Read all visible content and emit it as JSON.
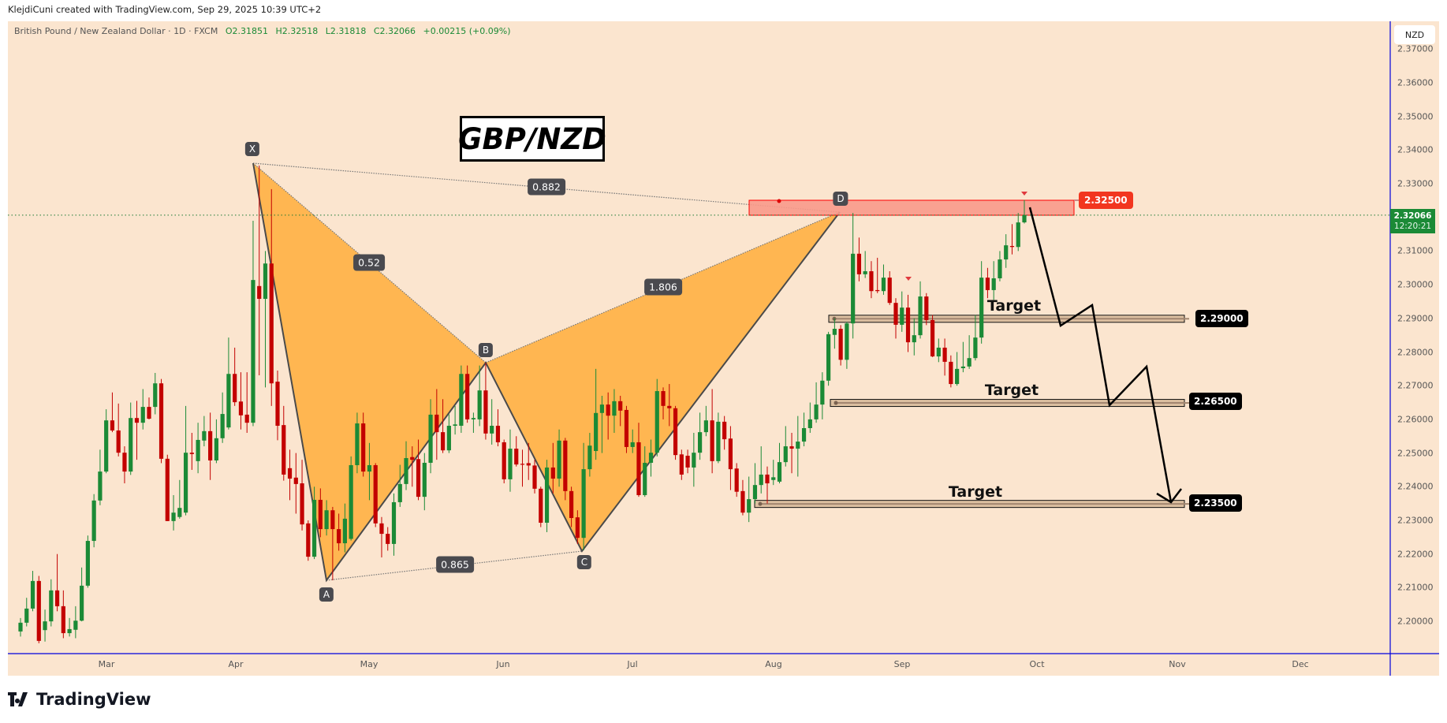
{
  "credit": "KlejdiCuni created with TradingView.com, Sep 29, 2025 10:39 UTC+2",
  "legend": {
    "symbol": "British Pound / New Zealand Dollar · 1D · FXCM",
    "open": "O2.31851",
    "high": "H2.32518",
    "low": "L2.31818",
    "close": "C2.32066",
    "change": "+0.00215 (+0.09%)"
  },
  "currency_button": "NZD",
  "current_price": {
    "value": "2.32066",
    "countdown": "12:20:21"
  },
  "price_axis": [
    "2.37000",
    "2.36000",
    "2.35000",
    "2.34000",
    "2.33000",
    "2.31000",
    "2.30000",
    "2.29000",
    "2.28000",
    "2.27000",
    "2.26000",
    "2.25000",
    "2.24000",
    "2.23000",
    "2.22000",
    "2.21000",
    "2.20000"
  ],
  "time_axis": [
    "Mar",
    "Apr",
    "May",
    "Jun",
    "Jul",
    "Aug",
    "Sep",
    "Oct",
    "Nov",
    "Dec"
  ],
  "title_label": "GBP/NZD",
  "pattern": {
    "points": [
      "X",
      "A",
      "B",
      "C",
      "D"
    ],
    "ratios": {
      "xb": "0.52",
      "xd": "0.882",
      "bd": "1.806",
      "ac": "0.865"
    }
  },
  "zones": {
    "sell_zone": "2.32500",
    "targets": [
      {
        "label": "Target",
        "price": "2.29000"
      },
      {
        "label": "Target",
        "price": "2.26500"
      },
      {
        "label": "Target",
        "price": "2.23500"
      }
    ]
  },
  "logo": "TradingView",
  "colors": {
    "up": "#1b8a36",
    "down": "#c30000",
    "pattern": "#ffb651",
    "background": "#fbe5cf",
    "zone": "#f8998a"
  },
  "chart_data": {
    "type": "candlestick",
    "title": "British Pound / New Zealand Dollar · 1D · FXCM",
    "ylim": [
      2.192,
      2.372
    ],
    "candles_ohlc": [
      [
        2.197,
        2.201,
        2.1955,
        2.1996
      ],
      [
        2.1996,
        2.207,
        2.1985,
        2.2038
      ],
      [
        2.2038,
        2.215,
        2.203,
        2.212
      ],
      [
        2.212,
        2.2135,
        2.1935,
        2.1942
      ],
      [
        2.1974,
        2.2035,
        2.194,
        2.2
      ],
      [
        2.2,
        2.2125,
        2.1985,
        2.2092
      ],
      [
        2.2092,
        2.22,
        2.203,
        2.2045
      ],
      [
        2.2045,
        2.2092,
        2.195,
        2.1965
      ],
      [
        2.1965,
        2.201,
        2.1955,
        2.1977
      ],
      [
        2.1975,
        2.2045,
        2.195,
        2.2002
      ],
      [
        2.2002,
        2.216,
        2.2,
        2.2106
      ],
      [
        2.2106,
        2.2255,
        2.21,
        2.2239
      ],
      [
        2.2239,
        2.2378,
        2.222,
        2.2359
      ],
      [
        2.2359,
        2.251,
        2.2345,
        2.2445
      ],
      [
        2.2445,
        2.263,
        2.244,
        2.2597
      ],
      [
        2.2597,
        2.268,
        2.2562,
        2.2567
      ],
      [
        2.2567,
        2.2647,
        2.249,
        2.2501
      ],
      [
        2.2501,
        2.252,
        2.241,
        2.2445
      ],
      [
        2.2445,
        2.265,
        2.2435,
        2.2604
      ],
      [
        2.2604,
        2.2655,
        2.248,
        2.259
      ],
      [
        2.259,
        2.269,
        2.257,
        2.2637
      ],
      [
        2.2637,
        2.2665,
        2.26,
        2.2602
      ],
      [
        2.2637,
        2.2738,
        2.2615,
        2.2707
      ],
      [
        2.2707,
        2.272,
        2.247,
        2.2483
      ],
      [
        2.2483,
        2.2495,
        2.2298,
        2.2298
      ],
      [
        2.2298,
        2.2375,
        2.227,
        2.2323
      ],
      [
        2.231,
        2.242,
        2.2305,
        2.2337
      ],
      [
        2.2323,
        2.264,
        2.2315,
        2.2501
      ],
      [
        2.2501,
        2.256,
        2.245,
        2.2497
      ],
      [
        2.2476,
        2.259,
        2.244,
        2.2539
      ],
      [
        2.2537,
        2.261,
        2.252,
        2.2565
      ],
      [
        2.2565,
        2.262,
        2.242,
        2.2478
      ],
      [
        2.2478,
        2.26,
        2.247,
        2.2544
      ],
      [
        2.2544,
        2.268,
        2.253,
        2.2616
      ],
      [
        2.2576,
        2.2843,
        2.257,
        2.2735
      ],
      [
        2.2735,
        2.2813,
        2.264,
        2.2651
      ],
      [
        2.2653,
        2.274,
        2.257,
        2.2612
      ],
      [
        2.2614,
        2.274,
        2.256,
        2.259
      ],
      [
        2.259,
        2.319,
        2.258,
        2.3014
      ],
      [
        2.2996,
        2.3354,
        2.2731,
        2.2958
      ],
      [
        2.2958,
        2.31,
        2.2695,
        2.3063
      ],
      [
        2.3063,
        2.3284,
        2.264,
        2.2707
      ],
      [
        2.2712,
        2.2745,
        2.2538,
        2.2581
      ],
      [
        2.2583,
        2.264,
        2.2418,
        2.2436
      ],
      [
        2.2455,
        2.251,
        2.236,
        2.2424
      ],
      [
        2.2427,
        2.25,
        2.232,
        2.2408
      ],
      [
        2.241,
        2.248,
        2.227,
        2.2288
      ],
      [
        2.2291,
        2.23,
        2.218,
        2.2192
      ],
      [
        2.2192,
        2.24,
        2.2185,
        2.2361
      ],
      [
        2.2361,
        2.2395,
        2.225,
        2.2274
      ],
      [
        2.2274,
        2.236,
        2.2255,
        2.233
      ],
      [
        2.233,
        2.234,
        2.2122,
        2.2274
      ],
      [
        2.2274,
        2.232,
        2.221,
        2.2232
      ],
      [
        2.2232,
        2.235,
        2.2205,
        2.2305
      ],
      [
        2.2245,
        2.249,
        2.224,
        2.2464
      ],
      [
        2.2464,
        2.262,
        2.244,
        2.2588
      ],
      [
        2.2588,
        2.262,
        2.243,
        2.2445
      ],
      [
        2.2445,
        2.253,
        2.236,
        2.2464
      ],
      [
        2.2464,
        2.247,
        2.228,
        2.2291
      ],
      [
        2.2291,
        2.231,
        2.219,
        2.226
      ],
      [
        2.226,
        2.228,
        2.221,
        2.223
      ],
      [
        2.223,
        2.238,
        2.2195,
        2.2354
      ],
      [
        2.2354,
        2.2465,
        2.234,
        2.2408
      ],
      [
        2.2408,
        2.2535,
        2.239,
        2.2485
      ],
      [
        2.2488,
        2.252,
        2.24,
        2.248
      ],
      [
        2.2482,
        2.254,
        2.236,
        2.237
      ],
      [
        2.237,
        2.25,
        2.233,
        2.2471
      ],
      [
        2.2471,
        2.266,
        2.244,
        2.2614
      ],
      [
        2.2614,
        2.269,
        2.248,
        2.2562
      ],
      [
        2.2562,
        2.266,
        2.25,
        2.2508
      ],
      [
        2.2508,
        2.2615,
        2.25,
        2.2581
      ],
      [
        2.2581,
        2.264,
        2.2555,
        2.2585
      ],
      [
        2.2581,
        2.276,
        2.256,
        2.2735
      ],
      [
        2.2735,
        2.276,
        2.259,
        2.26
      ],
      [
        2.26,
        2.262,
        2.256,
        2.2604
      ],
      [
        2.26,
        2.276,
        2.258,
        2.2686
      ],
      [
        2.2686,
        2.2768,
        2.254,
        2.2558
      ],
      [
        2.2558,
        2.266,
        2.2525,
        2.2581
      ],
      [
        2.2581,
        2.263,
        2.252,
        2.2532
      ],
      [
        2.2532,
        2.254,
        2.241,
        2.2422
      ],
      [
        2.2422,
        2.257,
        2.2385,
        2.2513
      ],
      [
        2.2513,
        2.255,
        2.246,
        2.2466
      ],
      [
        2.2468,
        2.251,
        2.24,
        2.2466
      ],
      [
        2.247,
        2.253,
        2.242,
        2.2463
      ],
      [
        2.2463,
        2.248,
        2.238,
        2.2394
      ],
      [
        2.2394,
        2.24,
        2.228,
        2.2293
      ],
      [
        2.2293,
        2.248,
        2.2265,
        2.2457
      ],
      [
        2.2457,
        2.253,
        2.238,
        2.2424
      ],
      [
        2.2424,
        2.257,
        2.24,
        2.2537
      ],
      [
        2.2537,
        2.2545,
        2.236,
        2.2387
      ],
      [
        2.2387,
        2.24,
        2.228,
        2.2307
      ],
      [
        2.2309,
        2.233,
        2.223,
        2.2248
      ],
      [
        2.2248,
        2.253,
        2.2211,
        2.2452
      ],
      [
        2.2452,
        2.256,
        2.243,
        2.2522
      ],
      [
        2.2506,
        2.275,
        2.248,
        2.2619
      ],
      [
        2.2619,
        2.267,
        2.25,
        2.2644
      ],
      [
        2.2644,
        2.268,
        2.254,
        2.2611
      ],
      [
        2.2611,
        2.269,
        2.256,
        2.2654
      ],
      [
        2.2654,
        2.267,
        2.258,
        2.2626
      ],
      [
        2.2628,
        2.264,
        2.25,
        2.2518
      ],
      [
        2.2518,
        2.257,
        2.25,
        2.2532
      ],
      [
        2.2532,
        2.259,
        2.237,
        2.2375
      ],
      [
        2.2375,
        2.252,
        2.237,
        2.2471
      ],
      [
        2.2471,
        2.254,
        2.243,
        2.2501
      ],
      [
        2.2501,
        2.272,
        2.249,
        2.2684
      ],
      [
        2.2684,
        2.2695,
        2.26,
        2.264
      ],
      [
        2.264,
        2.2705,
        2.258,
        2.2633
      ],
      [
        2.2633,
        2.264,
        2.248,
        2.2494
      ],
      [
        2.2496,
        2.251,
        2.242,
        2.2436
      ],
      [
        2.2492,
        2.251,
        2.244,
        2.2457
      ],
      [
        2.2457,
        2.256,
        2.24,
        2.2501
      ],
      [
        2.2501,
        2.262,
        2.248,
        2.2562
      ],
      [
        2.2562,
        2.264,
        2.255,
        2.2597
      ],
      [
        2.2597,
        2.269,
        2.244,
        2.2476
      ],
      [
        2.2476,
        2.262,
        2.247,
        2.2593
      ],
      [
        2.2593,
        2.261,
        2.251,
        2.2541
      ],
      [
        2.2543,
        2.258,
        2.239,
        2.2452
      ],
      [
        2.2454,
        2.247,
        2.237,
        2.2385
      ],
      [
        2.2387,
        2.242,
        2.2315,
        2.2323
      ],
      [
        2.2323,
        2.243,
        2.2295,
        2.2363
      ],
      [
        2.2363,
        2.247,
        2.235,
        2.2405
      ],
      [
        2.2405,
        2.252,
        2.238,
        2.2436
      ],
      [
        2.2436,
        2.246,
        2.235,
        2.241
      ],
      [
        2.242,
        2.248,
        2.2405,
        2.2428
      ],
      [
        2.2415,
        2.253,
        2.241,
        2.2473
      ],
      [
        2.2473,
        2.258,
        2.246,
        2.252
      ],
      [
        2.252,
        2.256,
        2.244,
        2.2513
      ],
      [
        2.2513,
        2.261,
        2.243,
        2.2534
      ],
      [
        2.2534,
        2.262,
        2.252,
        2.2574
      ],
      [
        2.2574,
        2.265,
        2.256,
        2.26
      ],
      [
        2.26,
        2.271,
        2.259,
        2.2644
      ],
      [
        2.2644,
        2.274,
        2.26,
        2.2715
      ],
      [
        2.2715,
        2.286,
        2.27,
        2.2853
      ],
      [
        2.2851,
        2.29,
        2.281,
        2.2869
      ],
      [
        2.2869,
        2.288,
        2.276,
        2.2777
      ],
      [
        2.2777,
        2.289,
        2.275,
        2.2885
      ],
      [
        2.2885,
        2.3213,
        2.284,
        2.3092
      ],
      [
        2.3092,
        2.314,
        2.301,
        2.3031
      ],
      [
        2.3031,
        2.31,
        2.302,
        2.304
      ],
      [
        2.304,
        2.307,
        2.296,
        2.2981
      ],
      [
        2.2984,
        2.308,
        2.2975,
        2.2981
      ],
      [
        2.2981,
        2.306,
        2.297,
        2.3021
      ],
      [
        2.3021,
        2.304,
        2.294,
        2.2946
      ],
      [
        2.2946,
        2.296,
        2.284,
        2.2881
      ],
      [
        2.2881,
        2.298,
        2.286,
        2.2932
      ],
      [
        2.2932,
        2.297,
        2.28,
        2.2829
      ],
      [
        2.2829,
        2.29,
        2.279,
        2.285
      ],
      [
        2.285,
        2.301,
        2.284,
        2.2965
      ],
      [
        2.2965,
        2.2975,
        2.288,
        2.2895
      ],
      [
        2.2895,
        2.291,
        2.2785,
        2.2787
      ],
      [
        2.2787,
        2.284,
        2.277,
        2.2813
      ],
      [
        2.2813,
        2.284,
        2.273,
        2.2771
      ],
      [
        2.2771,
        2.279,
        2.2695,
        2.2705
      ],
      [
        2.2705,
        2.28,
        2.27,
        2.275
      ],
      [
        2.2752,
        2.283,
        2.274,
        2.2757
      ],
      [
        2.2757,
        2.285,
        2.275,
        2.2782
      ],
      [
        2.2782,
        2.291,
        2.2775,
        2.2843
      ],
      [
        2.2843,
        2.307,
        2.2825,
        2.3021
      ],
      [
        2.3021,
        2.305,
        2.296,
        2.2984
      ],
      [
        2.2984,
        2.307,
        2.2955,
        2.3019
      ],
      [
        2.3019,
        2.31,
        2.301,
        2.3075
      ],
      [
        2.3075,
        2.315,
        2.305,
        2.3117
      ],
      [
        2.3115,
        2.318,
        2.309,
        2.3112
      ],
      [
        2.3112,
        2.3213,
        2.31,
        2.3185
      ],
      [
        2.31851,
        2.32518,
        2.31818,
        2.32066
      ]
    ]
  }
}
